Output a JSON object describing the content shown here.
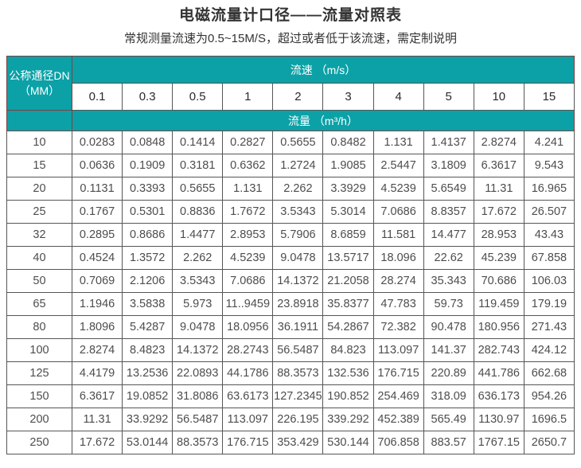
{
  "title": "电磁流量计口径——流量对照表",
  "subtitle": "常规测量流速为0.5~15M/S，超过或者低于该流速，需定制说明",
  "table": {
    "dn_header_line1": "公称通径DN",
    "dn_header_line2": "（MM）",
    "speed_header": "流速 （m/s）",
    "flow_header": "流量 （m³/h）",
    "speeds": [
      "0.1",
      "0.3",
      "0.5",
      "1",
      "2",
      "3",
      "4",
      "5",
      "10",
      "15"
    ],
    "rows": [
      {
        "dn": "10",
        "values": [
          "0.0283",
          "0.0848",
          "0.1414",
          "0.2827",
          "0.5655",
          "0.8482",
          "1.131",
          "1.4137",
          "2.8274",
          "4.241"
        ]
      },
      {
        "dn": "15",
        "values": [
          "0.0636",
          "0.1909",
          "0.3181",
          "0.6362",
          "1.2724",
          "1.9085",
          "2.5447",
          "3.1809",
          "6.3617",
          "9.543"
        ]
      },
      {
        "dn": "20",
        "values": [
          "0.1131",
          "0.3393",
          "0.5655",
          "1.131",
          "2.262",
          "3.3929",
          "4.5239",
          "5.6549",
          "11.31",
          "16.965"
        ]
      },
      {
        "dn": "25",
        "values": [
          "0.1767",
          "0.5301",
          "0.8836",
          "1.7672",
          "3.5343",
          "5.3014",
          "7.0686",
          "8.8357",
          "17.672",
          "26.507"
        ]
      },
      {
        "dn": "32",
        "values": [
          "0.2895",
          "0.8686",
          "1.4477",
          "2.8953",
          "5.7906",
          "8.6859",
          "11.581",
          "14.477",
          "28.953",
          "43.43"
        ]
      },
      {
        "dn": "40",
        "values": [
          "0.4524",
          "1.3572",
          "2.262",
          "4.5239",
          "9.0478",
          "13.5717",
          "18.096",
          "22.62",
          "45.239",
          "67.858"
        ]
      },
      {
        "dn": "50",
        "values": [
          "0.7069",
          "2.1206",
          "3.5343",
          "7.0686",
          "14.1372",
          "21.2058",
          "28.274",
          "35.343",
          "70.686",
          "106.03"
        ]
      },
      {
        "dn": "65",
        "values": [
          "1.1946",
          "3.5838",
          "5.973",
          "11..9459",
          "23.8918",
          "35.8377",
          "47.783",
          "59.73",
          "119.459",
          "179.19"
        ]
      },
      {
        "dn": "80",
        "values": [
          "1.8096",
          "5.4287",
          "9.0478",
          "18.0956",
          "36.1911",
          "54.2867",
          "72.382",
          "90.478",
          "180.956",
          "271.43"
        ]
      },
      {
        "dn": "100",
        "values": [
          "2.8274",
          "8.4823",
          "14.1372",
          "28.2743",
          "56.5487",
          "84.823",
          "113.097",
          "141.37",
          "282.743",
          "424.12"
        ]
      },
      {
        "dn": "125",
        "values": [
          "4.4179",
          "13.2536",
          "22.0893",
          "44.1786",
          "88.3573",
          "132.536",
          "176.715",
          "220.89",
          "441.786",
          "662.68"
        ]
      },
      {
        "dn": "150",
        "values": [
          "6.3617",
          "19.0852",
          "31.8086",
          "63.6173",
          "127.2345",
          "190.852",
          "254.469",
          "318.09",
          "636.173",
          "954.26"
        ]
      },
      {
        "dn": "200",
        "values": [
          "11.31",
          "33.9292",
          "56.5487",
          "113.097",
          "226.195",
          "339.292",
          "452.389",
          "565.49",
          "1130.97",
          "1696.5"
        ]
      },
      {
        "dn": "250",
        "values": [
          "17.672",
          "53.0144",
          "88.3573",
          "176.715",
          "353.429",
          "530.144",
          "706.858",
          "883.57",
          "1767.15",
          "2650.7"
        ]
      }
    ]
  },
  "colors": {
    "teal": "#0ba1a7",
    "teal_border": "#7c4242",
    "cell_border": "#565656",
    "title_text": "#333333",
    "cell_text": "#4d4d4d"
  }
}
